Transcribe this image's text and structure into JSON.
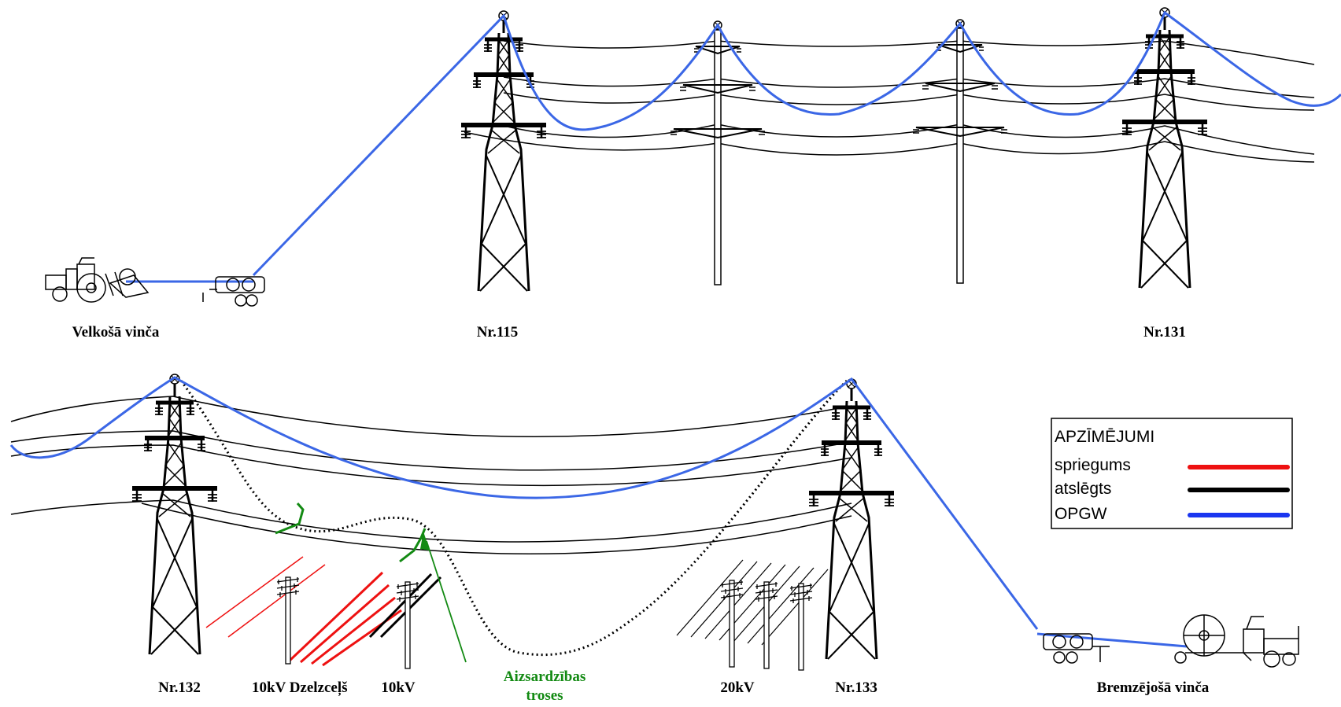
{
  "labels": {
    "pulling_winch": "Velkošā vinča",
    "tower_115": "Nr.115",
    "tower_131": "Nr.131",
    "tower_132": "Nr.132",
    "line_10kv_rail": "10kV Dzelzceļš",
    "line_10kv": "10kV",
    "protection_line1": "Aizsardzības",
    "protection_line2": "troses",
    "line_20kv": "20kV",
    "tower_133": "Nr.133",
    "braking_winch": "Bremzējošā vinča"
  },
  "legend": {
    "title": "APZĪMĒJUMI",
    "items": [
      {
        "label": "spriegums",
        "color": "#ee1111"
      },
      {
        "label": "atslēgts",
        "color": "#000000"
      },
      {
        "label": "OPGW",
        "color": "#1a36f0"
      }
    ]
  },
  "colors": {
    "opgw": "#3b67e6",
    "energized": "#ee1111",
    "protection": "#138a13",
    "conductor": "#000000"
  }
}
